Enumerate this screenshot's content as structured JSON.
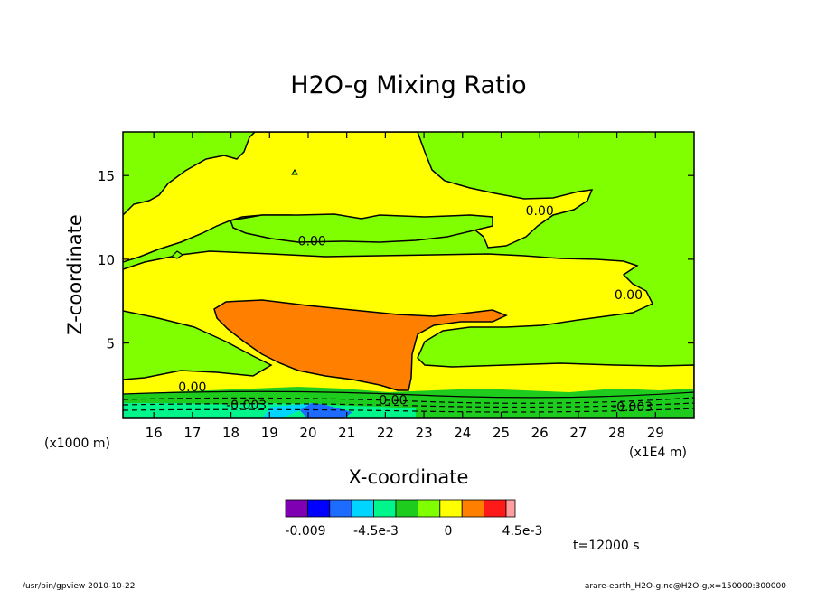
{
  "chart_data": {
    "type": "heatmap",
    "title": "H2O-g Mixing Ratio",
    "xlabel": "X-coordinate",
    "ylabel": "Z-coordinate",
    "x_unit_label": "(x1E4 m)",
    "y_unit_label": "(x1000 m)",
    "xlim": [
      15.2,
      30.0
    ],
    "ylim": [
      0.5,
      17.6
    ],
    "x_ticks": [
      16,
      17,
      18,
      19,
      20,
      21,
      22,
      23,
      24,
      25,
      26,
      27,
      28,
      29
    ],
    "y_ticks": [
      5,
      10,
      15
    ],
    "colorbar": {
      "colors": [
        "#7f00b2",
        "#0000ff",
        "#1e6bff",
        "#00d5ff",
        "#00f58a",
        "#1ecc1e",
        "#80ff00",
        "#ffff00",
        "#ff7f00",
        "#ff1a1a",
        "#ff9e9e"
      ],
      "labels": [
        "-0.009",
        "-4.5e-3",
        "0",
        "4.5e-3"
      ]
    },
    "contour_labels": [
      {
        "text": "0.00",
        "x": 26.0,
        "z": 12.9
      },
      {
        "text": "0.00",
        "x": 20.1,
        "z": 11.1
      },
      {
        "text": "0.00",
        "x": 28.3,
        "z": 7.9
      },
      {
        "text": "0.00",
        "x": 17.0,
        "z": 2.4
      },
      {
        "text": "0.00",
        "x": 22.2,
        "z": 1.6
      },
      {
        "text": "-0.003",
        "x": 18.4,
        "z": 1.3
      },
      {
        "text": "-0.003",
        "x": 28.4,
        "z": 1.2
      }
    ],
    "regions": [
      {
        "name": "background",
        "color": "#80ff00"
      },
      {
        "name": "upper-band",
        "color": "#ffff00"
      },
      {
        "name": "inner-green-band",
        "color": "#80ff00"
      },
      {
        "name": "mid-band",
        "color": "#ffff00"
      },
      {
        "name": "wedge",
        "color": "#ff7f00"
      },
      {
        "name": "surface-layer",
        "color": "#1ecc1e"
      }
    ]
  },
  "time_label": "t=12000 s",
  "footer_left": "/usr/bin/gpview  2010-10-22",
  "footer_right": "arare-earth_H2O-g.nc@H2O-g,x=150000:300000"
}
